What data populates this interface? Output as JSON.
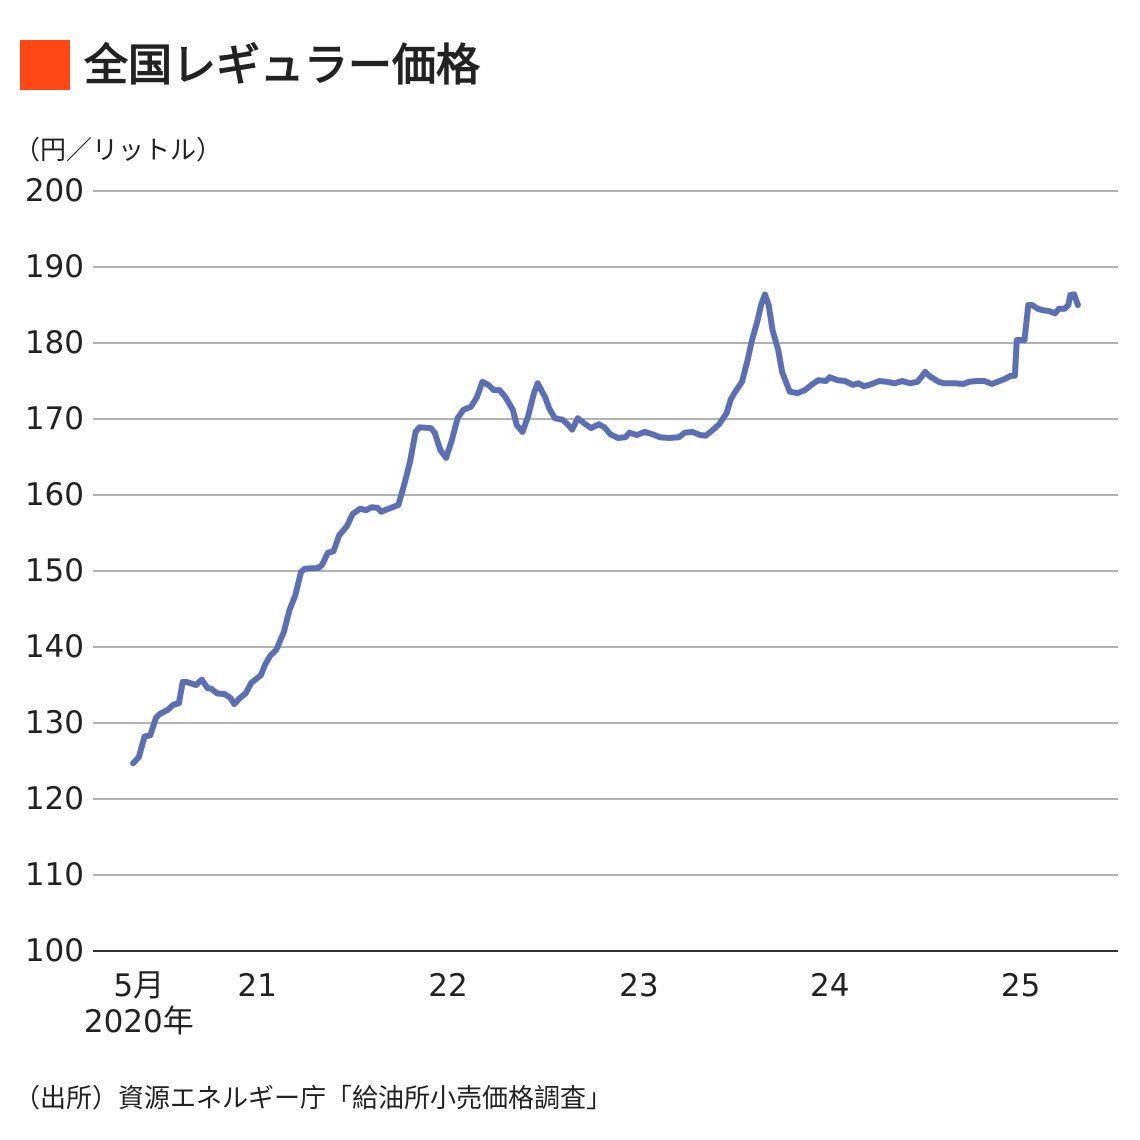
{
  "chart_data": {
    "type": "line",
    "title": "全国レギュラー価格",
    "y_label": "（円／リットル）",
    "source": "（出所）資源エネルギー庁「給油所小売価格調査」",
    "color": "#5a6fb4",
    "grid": true,
    "ylim": [
      100,
      200
    ],
    "yticks": [
      100,
      110,
      120,
      130,
      140,
      150,
      160,
      170,
      180,
      190,
      200
    ],
    "xlim": [
      2020.14,
      2025.51
    ],
    "xticks": [
      {
        "value": 2020.38,
        "label": "5月\n2020年"
      },
      {
        "value": 2021,
        "label": "21"
      },
      {
        "value": 2022,
        "label": "22"
      },
      {
        "value": 2023,
        "label": "23"
      },
      {
        "value": 2024,
        "label": "24"
      },
      {
        "value": 2025,
        "label": "25"
      }
    ],
    "x": [
      2020.35,
      2020.38,
      2020.41,
      2020.44,
      2020.47,
      2020.49,
      2020.53,
      2020.56,
      2020.59,
      2020.61,
      2020.63,
      2020.68,
      2020.71,
      2020.74,
      2020.76,
      2020.79,
      2020.83,
      2020.86,
      2020.88,
      2020.91,
      2020.94,
      2020.97,
      2021.02,
      2021.04,
      2021.07,
      2021.1,
      2021.14,
      2021.17,
      2021.2,
      2021.23,
      2021.25,
      2021.32,
      2021.34,
      2021.37,
      2021.4,
      2021.43,
      2021.47,
      2021.5,
      2021.54,
      2021.57,
      2021.6,
      2021.63,
      2021.65,
      2021.7,
      2021.74,
      2021.77,
      2021.8,
      2021.83,
      2021.85,
      2021.91,
      2021.93,
      2021.96,
      2021.99,
      2022.02,
      2022.05,
      2022.08,
      2022.12,
      2022.15,
      2022.18,
      2022.21,
      2022.24,
      2022.27,
      2022.3,
      2022.34,
      2022.36,
      2022.39,
      2022.42,
      2022.45,
      2022.47,
      2022.51,
      2022.53,
      2022.56,
      2022.6,
      2022.63,
      2022.65,
      2022.68,
      2022.72,
      2022.75,
      2022.79,
      2022.82,
      2022.85,
      2022.89,
      2022.93,
      2022.95,
      2022.99,
      2023.03,
      2023.07,
      2023.11,
      2023.16,
      2023.21,
      2023.24,
      2023.28,
      2023.32,
      2023.35,
      2023.38,
      2023.42,
      2023.46,
      2023.48,
      2023.5,
      2023.54,
      2023.57,
      2023.59,
      2023.62,
      2023.64,
      2023.66,
      2023.68,
      2023.7,
      2023.73,
      2023.75,
      2023.79,
      2023.83,
      2023.87,
      2023.91,
      2023.94,
      2023.98,
      2024.0,
      2024.04,
      2024.08,
      2024.12,
      2024.15,
      2024.18,
      2024.22,
      2024.26,
      2024.3,
      2024.34,
      2024.38,
      2024.42,
      2024.46,
      2024.5,
      2024.52,
      2024.57,
      2024.6,
      2024.66,
      2024.7,
      2024.73,
      2024.77,
      2024.81,
      2024.85,
      2024.89,
      2024.92,
      2024.95,
      2024.97,
      2024.98,
      2025.02,
      2025.04,
      2025.06,
      2025.09,
      2025.12,
      2025.15,
      2025.18,
      2025.2,
      2025.23,
      2025.25,
      2025.26,
      2025.28,
      2025.3
    ],
    "values": [
      124.7,
      125.5,
      128.2,
      128.4,
      130.7,
      131.2,
      131.7,
      132.4,
      132.6,
      135.4,
      135.4,
      135.0,
      135.7,
      134.6,
      134.5,
      133.9,
      133.8,
      133.3,
      132.5,
      133.3,
      133.9,
      135.3,
      136.3,
      137.6,
      138.9,
      139.6,
      142.0,
      144.9,
      146.8,
      149.9,
      150.3,
      150.4,
      150.8,
      152.4,
      152.6,
      154.7,
      155.9,
      157.5,
      158.2,
      158.0,
      158.4,
      158.3,
      157.8,
      158.3,
      158.7,
      161.3,
      164.3,
      168.3,
      168.9,
      168.8,
      168.2,
      165.9,
      164.9,
      167.2,
      170.1,
      171.2,
      171.6,
      172.8,
      174.9,
      174.5,
      173.8,
      173.8,
      172.9,
      171.2,
      169.2,
      168.3,
      170.4,
      173.4,
      174.7,
      172.8,
      171.4,
      170.1,
      169.9,
      169.2,
      168.6,
      170.1,
      169.3,
      168.8,
      169.3,
      168.9,
      168.0,
      167.5,
      167.6,
      168.2,
      167.9,
      168.3,
      168.0,
      167.6,
      167.5,
      167.6,
      168.2,
      168.3,
      167.9,
      167.8,
      168.4,
      169.3,
      170.8,
      172.5,
      173.4,
      174.9,
      177.8,
      180.1,
      182.8,
      185.0,
      186.4,
      185.0,
      181.7,
      179.1,
      176.2,
      173.6,
      173.4,
      173.8,
      174.6,
      175.1,
      175.0,
      175.5,
      175.1,
      175.0,
      174.5,
      174.7,
      174.3,
      174.6,
      175.0,
      174.9,
      174.7,
      175.0,
      174.7,
      174.9,
      176.2,
      175.7,
      174.9,
      174.7,
      174.7,
      174.6,
      174.9,
      175.0,
      175.0,
      174.6,
      175.0,
      175.3,
      175.7,
      175.7,
      180.4,
      180.4,
      185.0,
      185.0,
      184.5,
      184.3,
      184.2,
      183.9,
      184.5,
      184.5,
      185.0,
      186.3,
      186.4,
      185.0
    ]
  }
}
